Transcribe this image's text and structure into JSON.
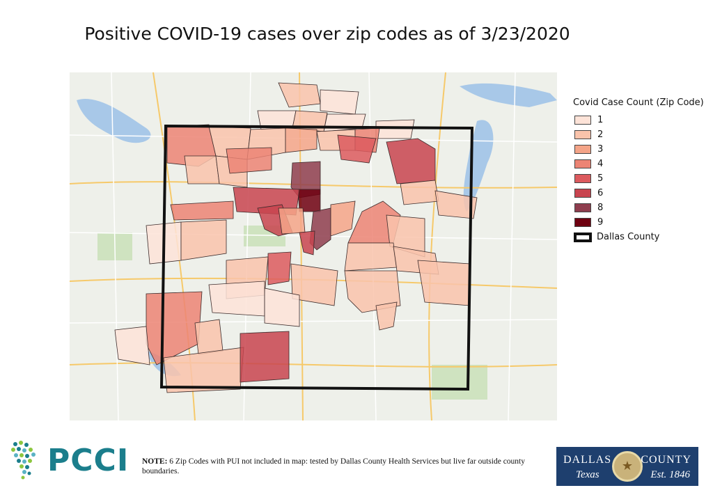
{
  "title": "Positive COVID-19 cases over zip codes as of 3/23/2020",
  "legend": {
    "title": "Covid Case Count (Zip Code)",
    "items": [
      {
        "label": "1",
        "color": "#fde3d8"
      },
      {
        "label": "2",
        "color": "#f9c3ab"
      },
      {
        "label": "3",
        "color": "#f4a488"
      },
      {
        "label": "4",
        "color": "#ec8474"
      },
      {
        "label": "5",
        "color": "#dc5a5e"
      },
      {
        "label": "6",
        "color": "#c8444f"
      },
      {
        "label": "8",
        "color": "#8e3d4e"
      },
      {
        "label": "9",
        "color": "#6e0010"
      }
    ],
    "county_label": "Dallas County"
  },
  "note": {
    "prefix": "NOTE:",
    "text": "6 Zip Codes with PUI not included in map: tested by Dallas County Health Services but live far outside county boundaries."
  },
  "logo": {
    "pcci": "PCCI"
  },
  "badge": {
    "top_left": "DALLAS",
    "top_right": "COUNTY",
    "bottom_left": "Texas",
    "bottom_right": "Est. 1846"
  }
}
